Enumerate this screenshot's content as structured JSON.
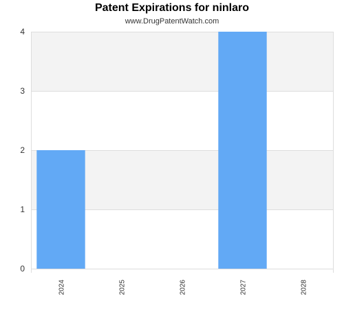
{
  "chart_data": {
    "type": "bar",
    "title": "Patent Expirations for ninlaro",
    "subtitle": "www.DrugPatentWatch.com",
    "xlabel": "",
    "ylabel": "",
    "categories": [
      "2024",
      "2025",
      "2026",
      "2027",
      "2028"
    ],
    "values": [
      2,
      0,
      0,
      4,
      0
    ],
    "ylim": [
      0,
      4
    ],
    "yticks": [
      0,
      1,
      2,
      3,
      4
    ],
    "grid": true,
    "legend": "none",
    "colors": {
      "bar": "#62a9f5",
      "band": "#f3f3f3",
      "gridline": "#dddddd"
    }
  }
}
